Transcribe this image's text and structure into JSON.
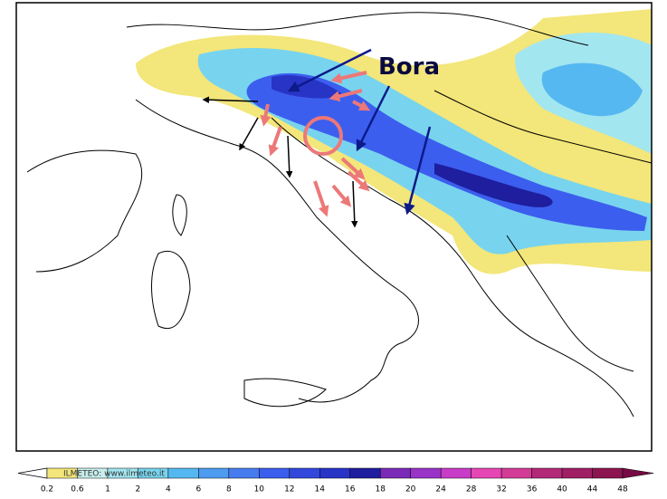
{
  "annotation": "Bora",
  "credit": "ILMETEO: www.ilmeteo.it",
  "legend": {
    "labels": [
      0.2,
      0.6,
      1,
      2,
      4,
      6,
      8,
      10,
      12,
      14,
      16,
      18,
      20,
      24,
      28,
      32,
      36,
      40,
      44,
      48
    ],
    "colors": [
      "#f3e67a",
      "#c8f0ee",
      "#a2e6f0",
      "#78d4ee",
      "#56b8f0",
      "#4e9cf0",
      "#467cee",
      "#3c5eee",
      "#3248dc",
      "#2834c6",
      "#1e1e9e",
      "#7a2ab6",
      "#9a34c8",
      "#c83cc8",
      "#e646b4",
      "#d23c96",
      "#b42878",
      "#a01e64",
      "#8c1450",
      "#760a44"
    ]
  }
}
